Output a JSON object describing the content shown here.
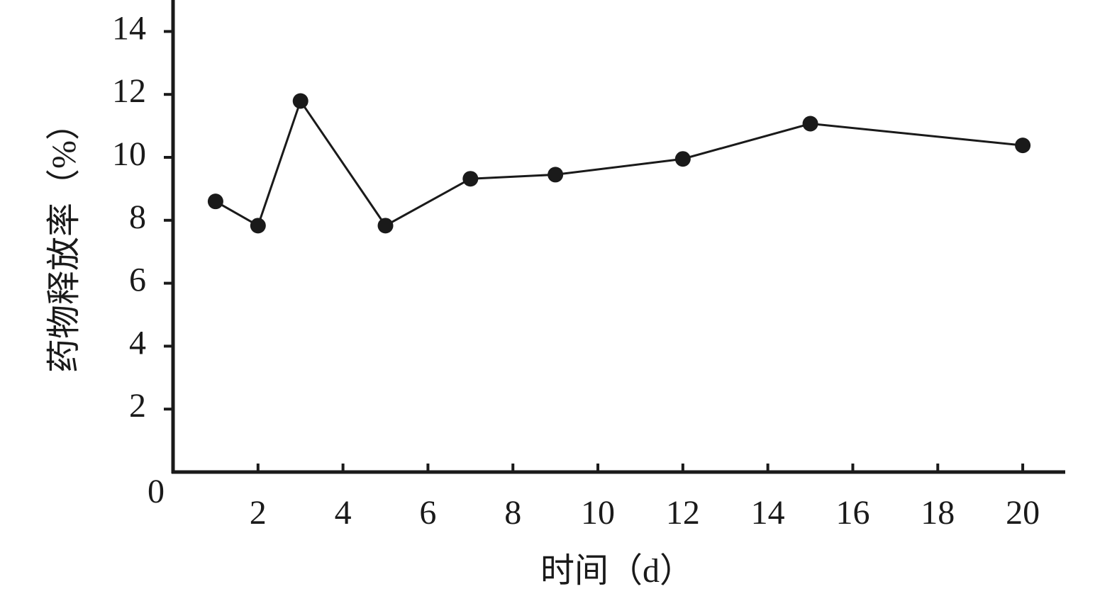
{
  "chart_data": {
    "type": "line",
    "x_label": "时间（d）",
    "y_label": "药物释放率（%）",
    "x": [
      1,
      2,
      3,
      5,
      7,
      9,
      12,
      15,
      20
    ],
    "series": [
      {
        "color": "#1a1a1a",
        "values": [
          8.6,
          7.83,
          11.79,
          7.83,
          9.32,
          9.45,
          9.95,
          11.07,
          10.38
        ]
      }
    ],
    "xlim": [
      0,
      21
    ],
    "xticks": [
      2,
      4,
      6,
      8,
      10,
      12,
      14,
      16,
      18,
      20
    ],
    "ylim": [
      0,
      15
    ],
    "yticks": [
      0,
      2,
      4,
      6,
      8,
      10,
      12,
      14
    ],
    "grid": false
  }
}
